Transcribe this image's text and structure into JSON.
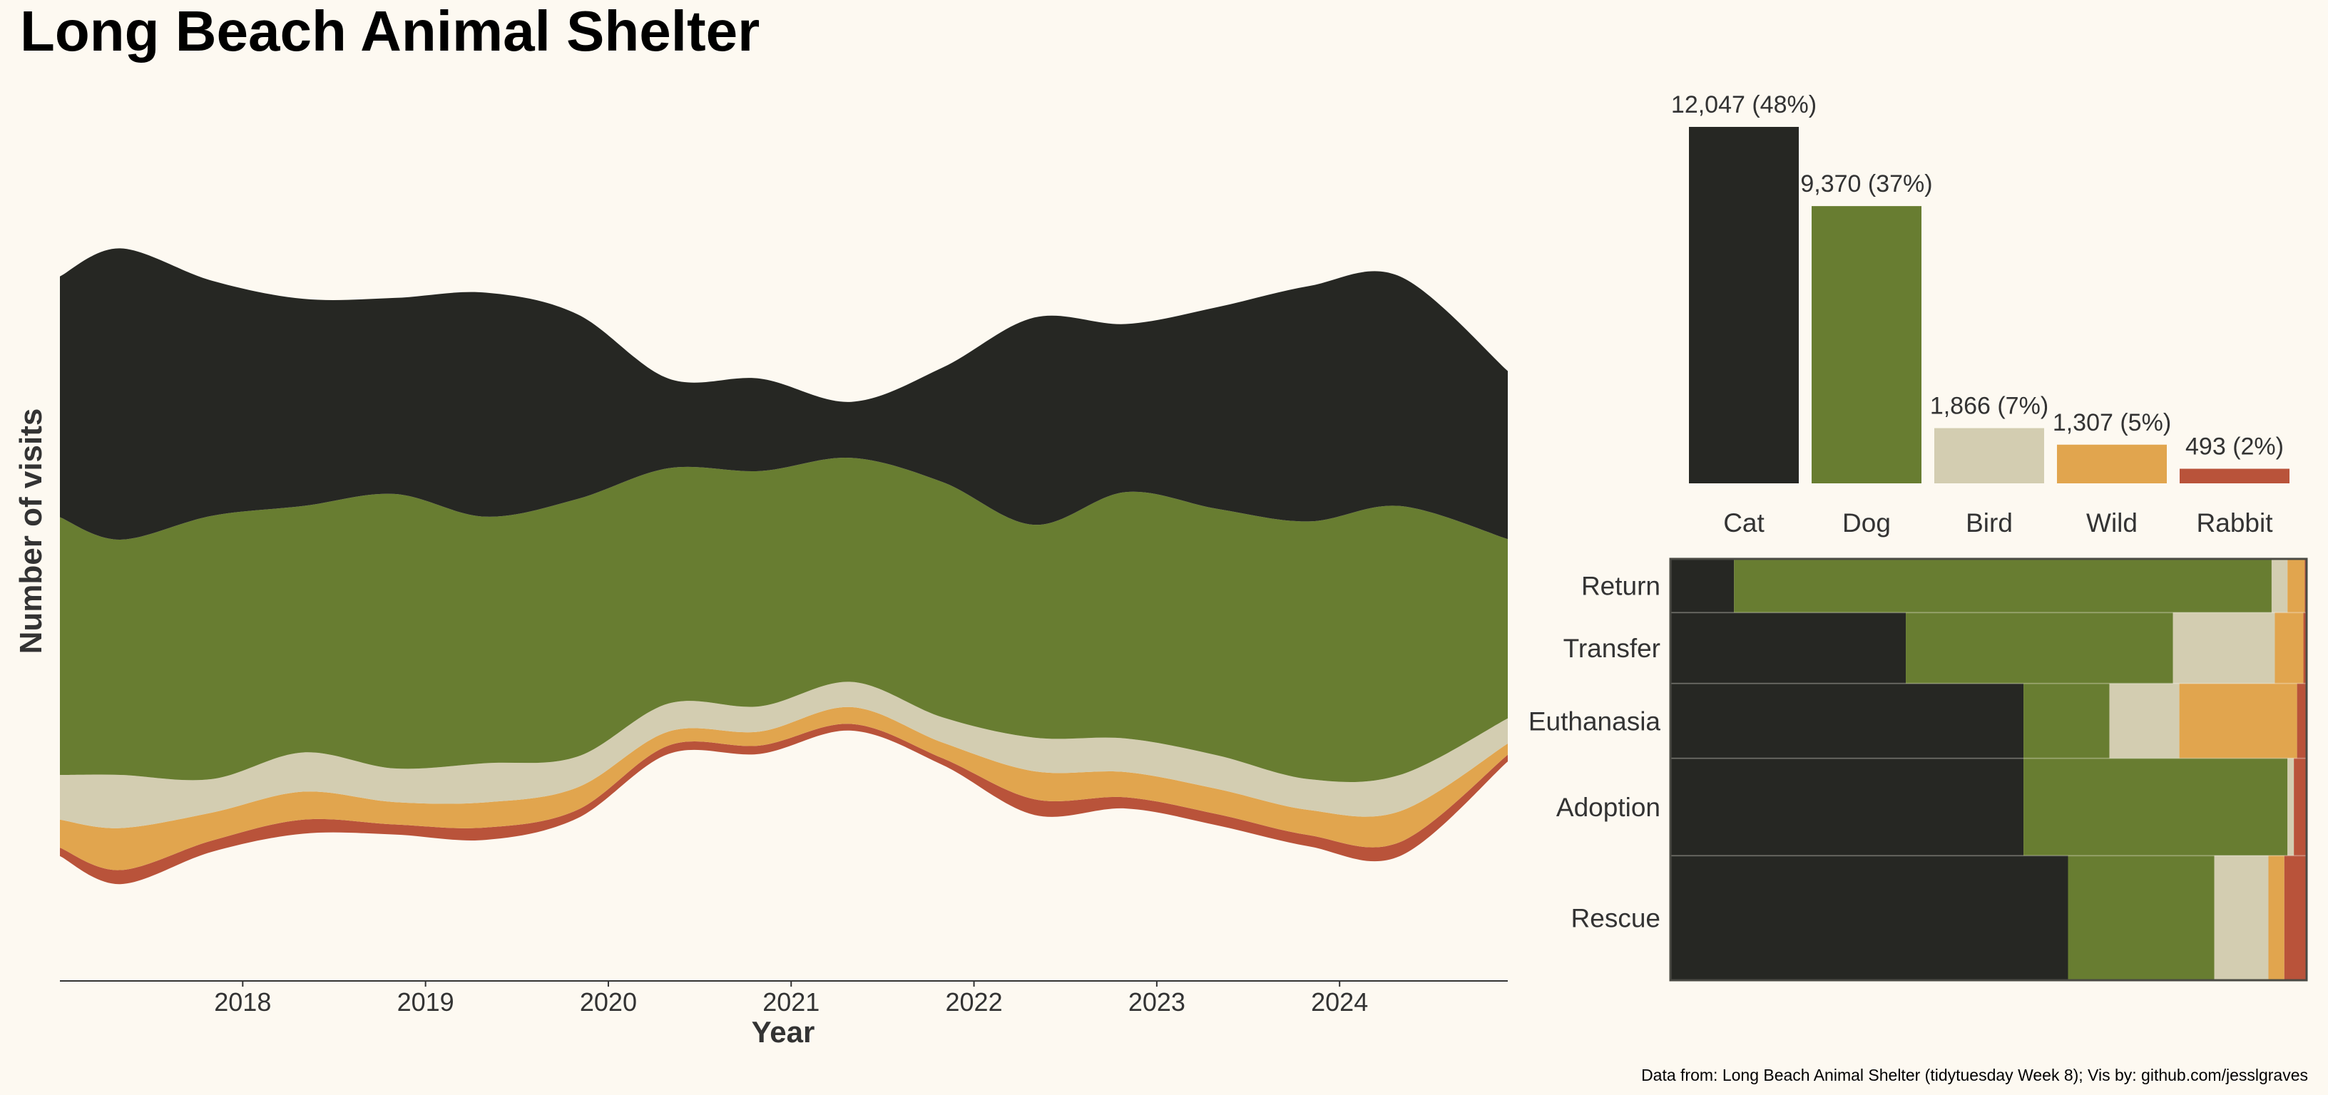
{
  "title": "Long Beach Animal Shelter",
  "caption": "Data from: Long Beach Animal Shelter (tidytuesday Week 8); Vis by: github.com/jesslgraves",
  "colors": {
    "background": "#fdf9f1",
    "Cat": "#262723",
    "Dog": "#687d31",
    "Bird": "#d3cdb1",
    "Wild": "#e1a54e",
    "Rabbit": "#b9533a",
    "text": "#333333"
  },
  "chart_data": [
    {
      "type": "area",
      "subtype": "streamgraph",
      "xlabel": "Year",
      "ylabel": "Number of visits",
      "x_ticks": [
        "2018",
        "2019",
        "2020",
        "2021",
        "2022",
        "2023",
        "2024"
      ],
      "xlim": [
        2017.0,
        2024.92
      ],
      "x": [
        2017.0,
        2017.33,
        2017.83,
        2018.33,
        2018.83,
        2019.33,
        2019.83,
        2020.33,
        2020.83,
        2021.33,
        2021.83,
        2022.33,
        2022.83,
        2023.33,
        2023.83,
        2024.33,
        2024.92
      ],
      "series": [
        {
          "name": "Cat",
          "values": [
            430,
            520,
            420,
            370,
            350,
            400,
            330,
            160,
            165,
            100,
            205,
            370,
            300,
            360,
            420,
            410,
            300
          ]
        },
        {
          "name": "Dog",
          "values": [
            460,
            420,
            470,
            440,
            490,
            440,
            460,
            420,
            420,
            400,
            420,
            380,
            440,
            440,
            460,
            480,
            320
          ]
        },
        {
          "name": "Bird",
          "values": [
            80,
            95,
            60,
            70,
            60,
            70,
            55,
            50,
            45,
            45,
            45,
            60,
            60,
            60,
            55,
            65,
            45
          ]
        },
        {
          "name": "Wild",
          "values": [
            50,
            75,
            50,
            50,
            40,
            45,
            40,
            25,
            25,
            30,
            28,
            50,
            45,
            45,
            45,
            55,
            20
          ]
        },
        {
          "name": "Rabbit",
          "values": [
            15,
            25,
            20,
            25,
            18,
            22,
            15,
            15,
            15,
            12,
            12,
            28,
            20,
            20,
            20,
            25,
            12
          ]
        }
      ],
      "yrange": [
        -720,
        820
      ],
      "grid": false,
      "legend": "none"
    },
    {
      "type": "bar",
      "categories": [
        "Cat",
        "Dog",
        "Bird",
        "Wild",
        "Rabbit"
      ],
      "values": [
        12047,
        9370,
        1866,
        1307,
        493
      ],
      "labels": [
        "12,047 (48%)",
        "9,370 (37%)",
        "1,866 (7%)",
        "1,307 (5%)",
        "493 (2%)"
      ],
      "ylim": [
        0,
        12047
      ],
      "grid": false,
      "legend": "none"
    },
    {
      "type": "bar",
      "subtype": "stacked-100-horizontal-mosaic",
      "categories": [
        "Return",
        "Transfer",
        "Euthanasia",
        "Adoption",
        "Rescue"
      ],
      "row_totals": [
        1120,
        1480,
        1560,
        2030,
        2600
      ],
      "series": [
        {
          "name": "Cat",
          "values": [
            0.1,
            0.37,
            0.555,
            0.555,
            0.625
          ]
        },
        {
          "name": "Dog",
          "values": [
            0.845,
            0.42,
            0.135,
            0.415,
            0.23
          ]
        },
        {
          "name": "Bird",
          "values": [
            0.025,
            0.16,
            0.11,
            0.01,
            0.085
          ]
        },
        {
          "name": "Wild",
          "values": [
            0.027,
            0.045,
            0.185,
            0.0,
            0.025
          ]
        },
        {
          "name": "Rabbit",
          "values": [
            0.003,
            0.005,
            0.015,
            0.02,
            0.035
          ]
        }
      ],
      "xlim": [
        0,
        1
      ],
      "grid": false,
      "legend": "none"
    }
  ]
}
